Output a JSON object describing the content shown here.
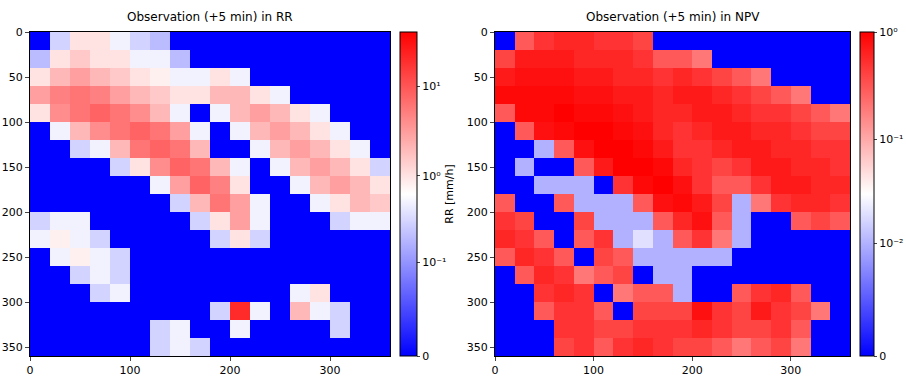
{
  "chart_data": [
    {
      "type": "heatmap",
      "title": "Observation (+5 min) in RR",
      "log": true,
      "x": [
        10,
        30,
        50,
        70,
        90,
        110,
        130,
        150,
        170,
        190,
        210,
        230,
        250,
        270,
        290,
        310,
        330,
        350
      ],
      "y": [
        10,
        30,
        50,
        70,
        90,
        110,
        130,
        150,
        170,
        190,
        210,
        230,
        250,
        270,
        290,
        310,
        330,
        350
      ],
      "xlim": [
        0,
        360
      ],
      "ylim": [
        360,
        0
      ],
      "xticks": [
        0,
        100,
        200,
        300
      ],
      "yticks": [
        0,
        50,
        100,
        150,
        200,
        250,
        300,
        350
      ],
      "colorbar": {
        "title": "RR [mm/h]",
        "range": [
          0,
          40
        ],
        "linthresh": 0.01,
        "ticks": [
          0,
          {
            "value": 0.1,
            "label": "10⁻¹"
          },
          {
            "value": 1,
            "label": "10⁰"
          },
          {
            "value": 10,
            "label": "10¹"
          }
        ]
      },
      "z": [
        [
          0,
          0.3,
          1,
          1,
          0.5,
          0.3,
          0.2,
          0,
          0,
          0,
          0,
          0,
          0,
          0,
          0,
          0,
          0,
          0
        ],
        [
          0.2,
          1,
          1.5,
          1,
          1,
          0.5,
          0.5,
          0.2,
          0,
          0,
          0,
          0,
          0,
          0,
          0,
          0,
          0,
          0
        ],
        [
          1,
          2,
          3,
          2,
          1.5,
          1,
          0.8,
          0.5,
          0.5,
          1,
          0.5,
          0,
          0,
          0,
          0,
          0,
          0,
          0
        ],
        [
          3,
          5,
          6,
          5,
          3,
          2,
          1.5,
          1,
          1,
          2,
          2,
          1,
          0.5,
          0,
          0,
          0,
          0,
          0
        ],
        [
          1,
          4,
          6,
          8,
          6,
          4,
          2,
          0.5,
          0,
          0.5,
          2,
          3,
          2,
          1,
          0.5,
          0,
          0,
          0
        ],
        [
          0,
          0.5,
          2,
          4,
          6,
          8,
          6,
          3,
          0.5,
          0,
          0.5,
          2,
          3,
          2,
          1,
          0.5,
          0,
          0
        ],
        [
          0,
          0,
          0.3,
          0.5,
          2,
          6,
          8,
          6,
          2,
          0,
          0,
          0.5,
          2,
          3,
          2,
          1,
          0.5,
          0
        ],
        [
          0,
          0,
          0,
          0,
          0.3,
          1,
          4,
          8,
          6,
          2,
          0.5,
          0,
          0.5,
          2,
          3,
          2,
          1,
          0.3
        ],
        [
          0,
          0,
          0,
          0,
          0,
          0,
          0.5,
          3,
          8,
          5,
          1,
          0,
          0,
          0.5,
          2,
          3,
          2,
          1
        ],
        [
          0,
          0,
          0,
          0,
          0,
          0,
          0,
          0.3,
          2,
          6,
          3,
          0.5,
          0,
          0,
          0.5,
          1,
          2,
          1.5
        ],
        [
          0.3,
          0.5,
          0.5,
          0,
          0,
          0,
          0,
          0,
          0.3,
          1,
          3,
          0.5,
          0,
          0,
          0,
          0.3,
          0.5,
          0.5
        ],
        [
          0.5,
          0.8,
          0.5,
          0.3,
          0,
          0,
          0,
          0,
          0,
          0.3,
          1,
          0.3,
          0,
          0,
          0,
          0,
          0,
          0
        ],
        [
          0,
          0.5,
          0.8,
          0.5,
          0.3,
          0,
          0,
          0,
          0,
          0,
          0,
          0,
          0,
          0,
          0,
          0,
          0,
          0
        ],
        [
          0,
          0,
          0.3,
          0.5,
          0.3,
          0,
          0,
          0,
          0,
          0,
          0,
          0,
          0,
          0,
          0,
          0,
          0,
          0
        ],
        [
          0,
          0,
          0,
          0.3,
          0.5,
          0,
          0,
          0,
          0,
          0,
          0,
          0,
          0,
          0.5,
          1,
          0,
          0,
          0
        ],
        [
          0,
          0,
          0,
          0,
          0,
          0,
          0,
          0,
          0,
          0.3,
          20,
          0.5,
          0,
          2,
          0.5,
          0.3,
          0,
          0
        ],
        [
          0,
          0,
          0,
          0,
          0,
          0,
          0.3,
          0.5,
          0,
          0,
          0.5,
          0,
          0,
          0,
          0,
          0.3,
          0,
          0
        ],
        [
          0,
          0,
          0,
          0,
          0,
          0,
          0.3,
          0.5,
          0.3,
          0,
          0,
          0,
          0,
          0,
          0,
          0,
          0,
          0
        ]
      ]
    },
    {
      "type": "heatmap",
      "title": "Observation (+5 min) in NPV",
      "log": true,
      "x": [
        10,
        30,
        50,
        70,
        90,
        110,
        130,
        150,
        170,
        190,
        210,
        230,
        250,
        270,
        290,
        310,
        330,
        350
      ],
      "y": [
        10,
        30,
        50,
        70,
        90,
        110,
        130,
        150,
        170,
        190,
        210,
        230,
        250,
        270,
        290,
        310,
        330,
        350
      ],
      "xlim": [
        0,
        360
      ],
      "ylim": [
        360,
        0
      ],
      "xticks": [
        0,
        100,
        200,
        300
      ],
      "yticks": [
        0,
        50,
        100,
        150,
        200,
        250,
        300,
        350
      ],
      "colorbar": {
        "range": [
          0,
          1
        ],
        "linthresh": 0.001,
        "ticks": [
          0,
          {
            "value": 0.01,
            "label": "10⁻²"
          },
          {
            "value": 0.1,
            "label": "10⁻¹"
          },
          {
            "value": 1,
            "label": "10⁰"
          }
        ]
      },
      "z": [
        [
          0,
          0.3,
          0.5,
          0.6,
          0.6,
          0.5,
          0.5,
          0.4,
          0,
          0,
          0,
          0,
          0,
          0,
          0,
          0,
          0,
          0
        ],
        [
          0.4,
          0.7,
          0.7,
          0.7,
          0.6,
          0.6,
          0.6,
          0.5,
          0.3,
          0.3,
          0.2,
          0,
          0,
          0,
          0,
          0,
          0,
          0
        ],
        [
          0.7,
          0.8,
          0.8,
          0.8,
          0.7,
          0.7,
          0.6,
          0.6,
          0.5,
          0.6,
          0.5,
          0.4,
          0.3,
          0.2,
          0,
          0,
          0,
          0
        ],
        [
          0.9,
          0.9,
          0.9,
          0.9,
          0.8,
          0.8,
          0.7,
          0.7,
          0.6,
          0.7,
          0.7,
          0.6,
          0.5,
          0.4,
          0.3,
          0.2,
          0,
          0
        ],
        [
          0.3,
          0.9,
          0.9,
          1,
          0.9,
          0.9,
          0.8,
          0.7,
          0.6,
          0.6,
          0.7,
          0.7,
          0.6,
          0.5,
          0.5,
          0.4,
          0.3,
          0.2
        ],
        [
          0,
          0.3,
          0.8,
          0.9,
          1,
          1,
          0.9,
          0.8,
          0.6,
          0.5,
          0.6,
          0.7,
          0.7,
          0.6,
          0.6,
          0.5,
          0.4,
          0.4
        ],
        [
          0,
          0,
          0.01,
          0.3,
          0.8,
          1,
          1,
          0.9,
          0.7,
          0.5,
          0.5,
          0.6,
          0.7,
          0.7,
          0.6,
          0.6,
          0.5,
          0.5
        ],
        [
          0,
          0.01,
          0,
          0,
          0.3,
          0.7,
          1,
          1,
          0.9,
          0.6,
          0.5,
          0.4,
          0.5,
          0.7,
          0.7,
          0.6,
          0.6,
          0.5
        ],
        [
          0,
          0,
          0.01,
          0.01,
          0.01,
          0,
          0.5,
          0.9,
          1,
          0.8,
          0.5,
          0.3,
          0.3,
          0.5,
          0.7,
          0.7,
          0.6,
          0.6
        ],
        [
          0.3,
          0,
          0,
          0.3,
          0.01,
          0.01,
          0.01,
          0.3,
          0.8,
          0.9,
          0.7,
          0.4,
          0.01,
          0.2,
          0.5,
          0.6,
          0.6,
          0.5
        ],
        [
          0.5,
          0.4,
          0,
          0,
          0.4,
          0.01,
          0.01,
          0.01,
          0.3,
          0.6,
          0.8,
          0.3,
          0.01,
          0,
          0,
          0.3,
          0.4,
          0.3
        ],
        [
          0.6,
          0.5,
          0.3,
          0,
          0.3,
          0.5,
          0.01,
          0.02,
          0.01,
          0.3,
          0.5,
          0.2,
          0.01,
          0,
          0,
          0,
          0,
          0
        ],
        [
          0.3,
          0.6,
          0.5,
          0.3,
          0,
          0.4,
          0.3,
          0.01,
          0.01,
          0.01,
          0.01,
          0.01,
          0,
          0,
          0,
          0,
          0,
          0
        ],
        [
          0,
          0.3,
          0.6,
          0.5,
          0.2,
          0.3,
          0.4,
          0,
          0.01,
          0.01,
          0,
          0,
          0,
          0,
          0,
          0,
          0,
          0
        ],
        [
          0,
          0,
          0.5,
          0.6,
          0.5,
          0,
          0.2,
          0.3,
          0.3,
          0.01,
          0,
          0,
          0.3,
          0.5,
          0.6,
          0.3,
          0,
          0
        ],
        [
          0,
          0,
          0.3,
          0.5,
          0.5,
          0.3,
          0,
          0.4,
          0.4,
          0.4,
          0.8,
          0.5,
          0.4,
          0.7,
          0.5,
          0.4,
          0.2,
          0
        ],
        [
          0,
          0,
          0,
          0.5,
          0.5,
          0.4,
          0.4,
          0.5,
          0.5,
          0.5,
          0.6,
          0.5,
          0.4,
          0.4,
          0.5,
          0.3,
          0,
          0
        ],
        [
          0,
          0,
          0,
          0.4,
          0.5,
          0.3,
          0.5,
          0.6,
          0.5,
          0.4,
          0.4,
          0.3,
          0.2,
          0.3,
          0.4,
          0.2,
          0,
          0
        ]
      ]
    }
  ]
}
